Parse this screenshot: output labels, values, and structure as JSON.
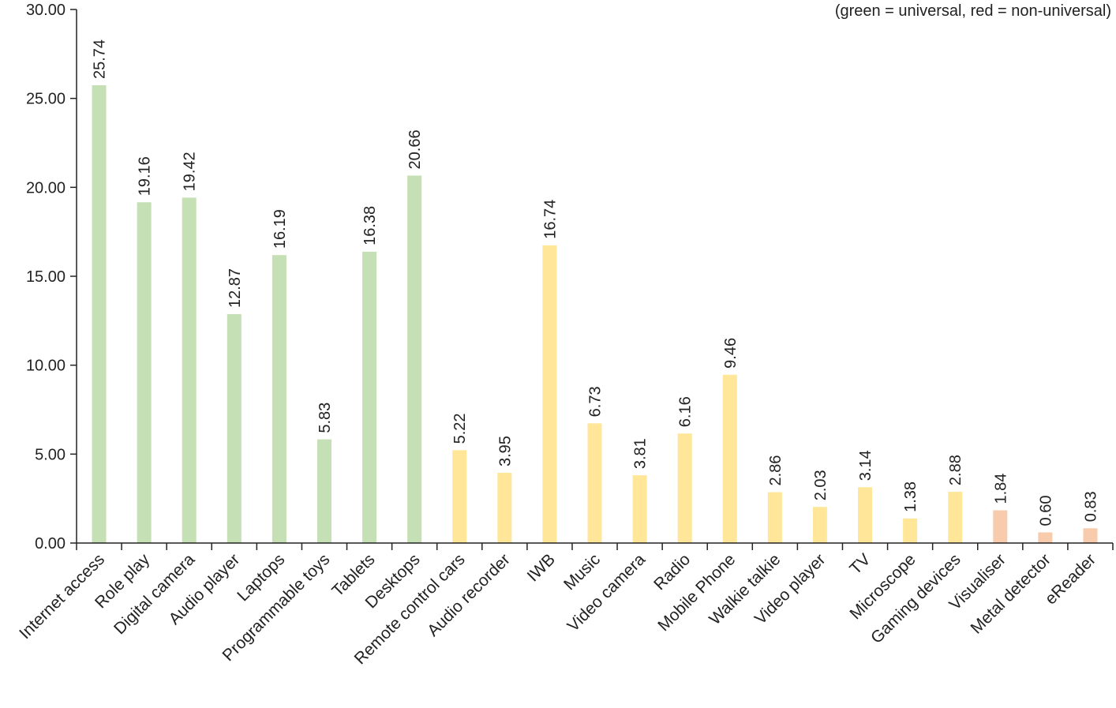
{
  "chart_data": {
    "type": "bar",
    "title": "",
    "note": "(green = universal, red = non-universal)",
    "xlabel": "",
    "ylabel": "",
    "ylim": [
      0,
      30
    ],
    "yticks": [
      "0.00",
      "5.00",
      "10.00",
      "15.00",
      "20.00",
      "25.00",
      "30.00"
    ],
    "grid": false,
    "colors": {
      "universal": "#c5e0b4",
      "middle": "#ffe699",
      "non-universal": "#f8cbad"
    },
    "categories": [
      "Internet access",
      "Role play",
      "Digital camera",
      "Audio player",
      "Laptops",
      "Programmable toys",
      "Tablets",
      "Desktops",
      "Remote control cars",
      "Audio recorder",
      "IWB",
      "Music",
      "Video camera",
      "Radio",
      "Mobile Phone",
      "Walkie talkie",
      "Video player",
      "TV",
      "Microscope",
      "Gaming devices",
      "Visualiser",
      "Metal detector",
      "eReader"
    ],
    "values": [
      25.74,
      19.16,
      19.42,
      12.87,
      16.19,
      5.83,
      16.38,
      20.66,
      5.22,
      3.95,
      16.74,
      6.73,
      3.81,
      6.16,
      9.46,
      2.86,
      2.03,
      3.14,
      1.38,
      2.88,
      1.84,
      0.6,
      0.83
    ],
    "value_labels": [
      "25.74",
      "19.16",
      "19.42",
      "12.87",
      "16.19",
      "5.83",
      "16.38",
      "20.66",
      "5.22",
      "3.95",
      "16.74",
      "6.73",
      "3.81",
      "6.16",
      "9.46",
      "2.86",
      "2.03",
      "3.14",
      "1.38",
      "2.88",
      "1.84",
      "0.60",
      "0.83"
    ],
    "groups": [
      "universal",
      "universal",
      "universal",
      "universal",
      "universal",
      "universal",
      "universal",
      "universal",
      "middle",
      "middle",
      "middle",
      "middle",
      "middle",
      "middle",
      "middle",
      "middle",
      "middle",
      "middle",
      "middle",
      "middle",
      "non-universal",
      "non-universal",
      "non-universal"
    ]
  }
}
